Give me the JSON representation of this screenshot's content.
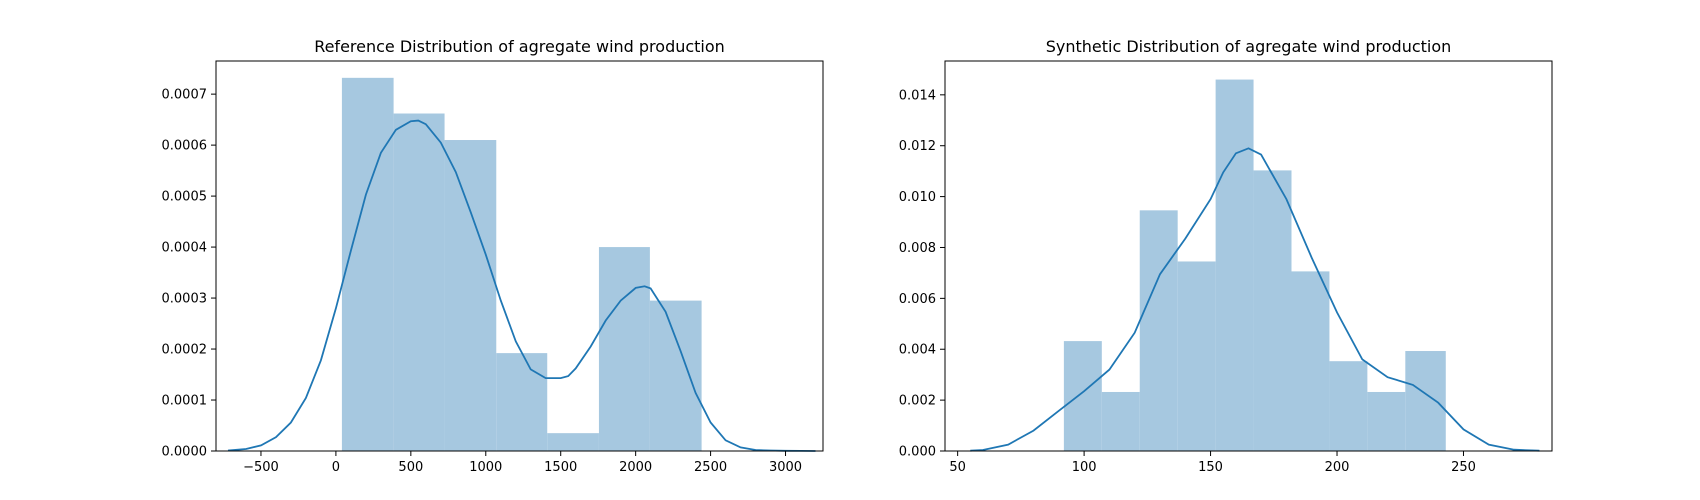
{
  "colors": {
    "bar_fill": "#a6c8e0",
    "kde_line": "#1f77b4"
  },
  "chart_data": [
    {
      "type": "histogram",
      "title": "Reference Distribution of agregate wind production",
      "xlabel": "",
      "ylabel": "",
      "xlim": [
        -800,
        3250
      ],
      "ylim": [
        0,
        0.000765
      ],
      "xticks": [
        -500,
        0,
        500,
        1000,
        1500,
        2000,
        2500,
        3000
      ],
      "xtick_labels": [
        "−500",
        "0",
        "500",
        "1000",
        "1500",
        "2000",
        "2500",
        "3000"
      ],
      "yticks": [
        0,
        0.0001,
        0.0002,
        0.0003,
        0.0004,
        0.0005,
        0.0006,
        0.0007
      ],
      "ytick_labels": [
        "0.0000",
        "0.0001",
        "0.0002",
        "0.0003",
        "0.0004",
        "0.0005",
        "0.0006",
        "0.0007"
      ],
      "bins": [
        {
          "x0": 40,
          "x1": 385,
          "height": 0.000732
        },
        {
          "x0": 385,
          "x1": 725,
          "height": 0.000662
        },
        {
          "x0": 725,
          "x1": 1070,
          "height": 0.00061
        },
        {
          "x0": 1070,
          "x1": 1410,
          "height": 0.000192
        },
        {
          "x0": 1410,
          "x1": 1755,
          "height": 3.5e-05
        },
        {
          "x0": 1755,
          "x1": 2095,
          "height": 0.0004
        },
        {
          "x0": 2095,
          "x1": 2440,
          "height": 0.000295
        }
      ],
      "kde": {
        "x": [
          -720,
          -600,
          -500,
          -400,
          -300,
          -200,
          -100,
          0,
          100,
          200,
          300,
          400,
          500,
          550,
          600,
          700,
          800,
          900,
          1000,
          1100,
          1200,
          1300,
          1400,
          1500,
          1550,
          1600,
          1700,
          1800,
          1900,
          2000,
          2060,
          2100,
          2200,
          2300,
          2400,
          2500,
          2600,
          2700,
          2800,
          2900,
          3000,
          3100,
          3200
        ],
        "y": [
          1e-06,
          4e-06,
          1.1e-05,
          2.7e-05,
          5.6e-05,
          0.000104,
          0.000178,
          0.00028,
          0.000393,
          0.000503,
          0.000585,
          0.00063,
          0.000647,
          0.000648,
          0.000641,
          0.000605,
          0.000547,
          0.000468,
          0.000385,
          0.000295,
          0.000215,
          0.00016,
          0.000143,
          0.000143,
          0.000147,
          0.000162,
          0.000205,
          0.000256,
          0.000295,
          0.00032,
          0.000323,
          0.000319,
          0.000273,
          0.000196,
          0.000114,
          5.6e-05,
          2.1e-05,
          7e-06,
          2e-06,
          1e-06,
          4e-07,
          1e-07,
          0.0
        ]
      }
    },
    {
      "type": "histogram",
      "title": "Synthetic Distribution of agregate wind production",
      "xlabel": "",
      "ylabel": "",
      "xlim": [
        45,
        285
      ],
      "ylim": [
        0,
        0.01533
      ],
      "xticks": [
        50,
        100,
        150,
        200,
        250
      ],
      "xtick_labels": [
        "50",
        "100",
        "150",
        "200",
        "250"
      ],
      "yticks": [
        0,
        0.002,
        0.004,
        0.006,
        0.008,
        0.01,
        0.012,
        0.014
      ],
      "ytick_labels": [
        "0.000",
        "0.002",
        "0.004",
        "0.006",
        "0.008",
        "0.010",
        "0.012",
        "0.014"
      ],
      "bins": [
        {
          "x0": 92,
          "x1": 107,
          "height": 0.00432
        },
        {
          "x0": 107,
          "x1": 122,
          "height": 0.00232
        },
        {
          "x0": 122,
          "x1": 137,
          "height": 0.00946
        },
        {
          "x0": 137,
          "x1": 152,
          "height": 0.00745
        },
        {
          "x0": 152,
          "x1": 167,
          "height": 0.0146
        },
        {
          "x0": 167,
          "x1": 182,
          "height": 0.01103
        },
        {
          "x0": 182,
          "x1": 197,
          "height": 0.00706
        },
        {
          "x0": 197,
          "x1": 212,
          "height": 0.00353
        },
        {
          "x0": 212,
          "x1": 227,
          "height": 0.00232
        },
        {
          "x0": 227,
          "x1": 243,
          "height": 0.00393
        }
      ],
      "kde": {
        "x": [
          55,
          60,
          70,
          80,
          90,
          100,
          110,
          120,
          130,
          140,
          150,
          155,
          160,
          165,
          170,
          180,
          190,
          200,
          210,
          220,
          230,
          240,
          250,
          260,
          270,
          280
        ],
        "y": [
          1e-05,
          4e-05,
          0.00025,
          0.0008,
          0.00158,
          0.00235,
          0.0032,
          0.00465,
          0.00695,
          0.00835,
          0.0099,
          0.01095,
          0.0117,
          0.0119,
          0.01165,
          0.0099,
          0.0076,
          0.00545,
          0.0036,
          0.0029,
          0.0026,
          0.0019,
          0.00085,
          0.00025,
          5e-05,
          1e-05
        ]
      }
    }
  ]
}
